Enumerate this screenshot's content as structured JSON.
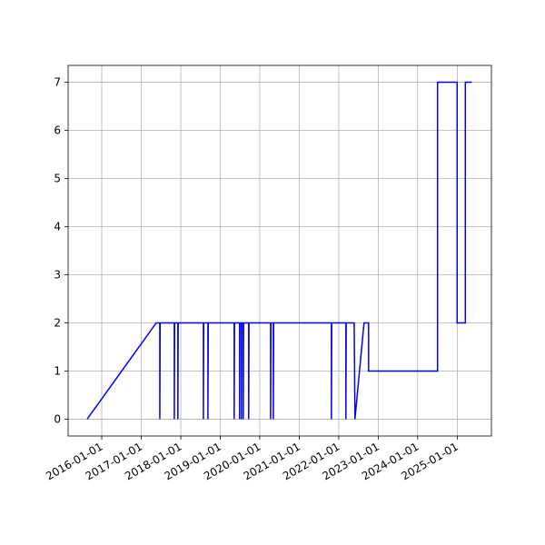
{
  "chart_data": {
    "type": "line",
    "x": [
      "2015-08-19",
      "2017-05-19",
      "2017-06-21",
      "2017-06-21",
      "2017-06-24",
      "2017-11-02",
      "2017-11-02",
      "2017-11-05",
      "2017-12-05",
      "2017-12-05",
      "2017-12-08",
      "2018-07-29",
      "2018-07-29",
      "2018-08-01",
      "2018-09-09",
      "2018-09-09",
      "2018-09-12",
      "2019-05-10",
      "2019-05-10",
      "2019-05-13",
      "2019-06-29",
      "2019-06-29",
      "2019-07-02",
      "2019-07-16",
      "2019-07-16",
      "2019-07-19",
      "2019-08-02",
      "2019-08-02",
      "2019-08-05",
      "2019-09-21",
      "2019-09-21",
      "2019-09-24",
      "2020-04-11",
      "2020-04-11",
      "2020-04-14",
      "2020-05-06",
      "2020-05-06",
      "2020-05-09",
      "2021-10-25",
      "2021-10-25",
      "2021-10-28",
      "2022-03-08",
      "2022-03-08",
      "2022-03-11",
      "2022-05-24",
      "2022-05-31",
      "2022-08-23",
      "2022-10-04",
      "2022-10-04",
      "2024-07-03",
      "2024-07-03",
      "2024-12-31",
      "2024-12-31",
      "2025-03-17",
      "2025-03-17",
      "2025-05-15"
    ],
    "series": [
      {
        "color": "#0000ff",
        "values": [
          0,
          2,
          2,
          0,
          2,
          2,
          0,
          2,
          2,
          0,
          2,
          2,
          0,
          2,
          2,
          0,
          2,
          2,
          0,
          2,
          2,
          0,
          2,
          2,
          0,
          2,
          2,
          0,
          2,
          2,
          0,
          2,
          2,
          0,
          2,
          2,
          0,
          2,
          2,
          0,
          2,
          2,
          0,
          2,
          2,
          0,
          2,
          2,
          1,
          1,
          7,
          7,
          2,
          2,
          7,
          7
        ]
      }
    ],
    "xlim": [
      "2015-02-24",
      "2025-11-13"
    ],
    "xticks": [
      "2016-01-01",
      "2017-01-01",
      "2018-01-01",
      "2019-01-01",
      "2020-01-01",
      "2021-01-01",
      "2022-01-01",
      "2023-01-01",
      "2024-01-01",
      "2025-01-01"
    ],
    "ylim": [
      -0.35,
      7.35
    ],
    "yticks": [
      0,
      1,
      2,
      3,
      4,
      5,
      6,
      7
    ],
    "grid": true
  }
}
